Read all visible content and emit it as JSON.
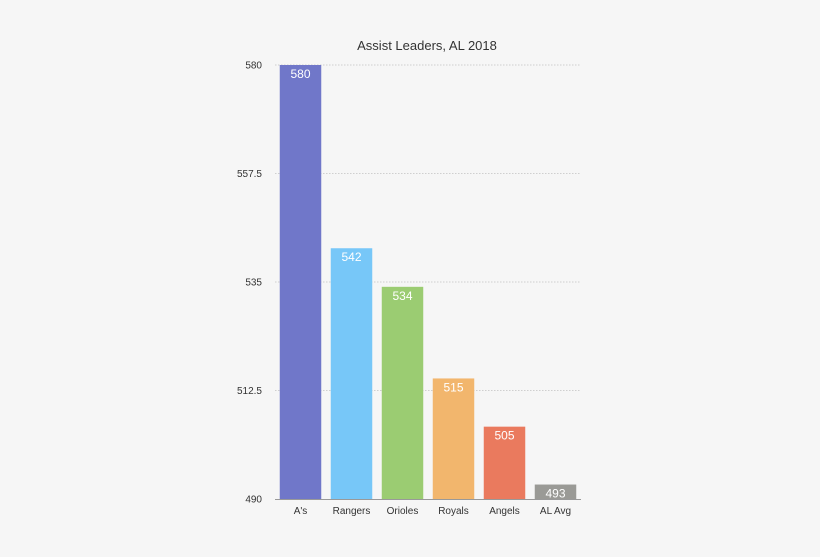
{
  "chart_data": {
    "type": "bar",
    "title": "Assist Leaders, AL 2018",
    "categories": [
      "A's",
      "Rangers",
      "Orioles",
      "Royals",
      "Angels",
      "AL Avg"
    ],
    "values": [
      580,
      542,
      534,
      515,
      505,
      493
    ],
    "value_labels": [
      "580",
      "542",
      "534",
      "515",
      "505",
      "493"
    ],
    "colors": [
      "#7077c9",
      "#77c7f8",
      "#9bcc72",
      "#f2b66d",
      "#ea7a5e",
      "#9a9a96"
    ],
    "ylim": [
      490,
      580
    ],
    "yticks": [
      490,
      512.5,
      535,
      557.5,
      580
    ],
    "ytick_labels": [
      "490",
      "512.5",
      "535",
      "557.5",
      "580"
    ],
    "grid": true,
    "legend": "none"
  }
}
